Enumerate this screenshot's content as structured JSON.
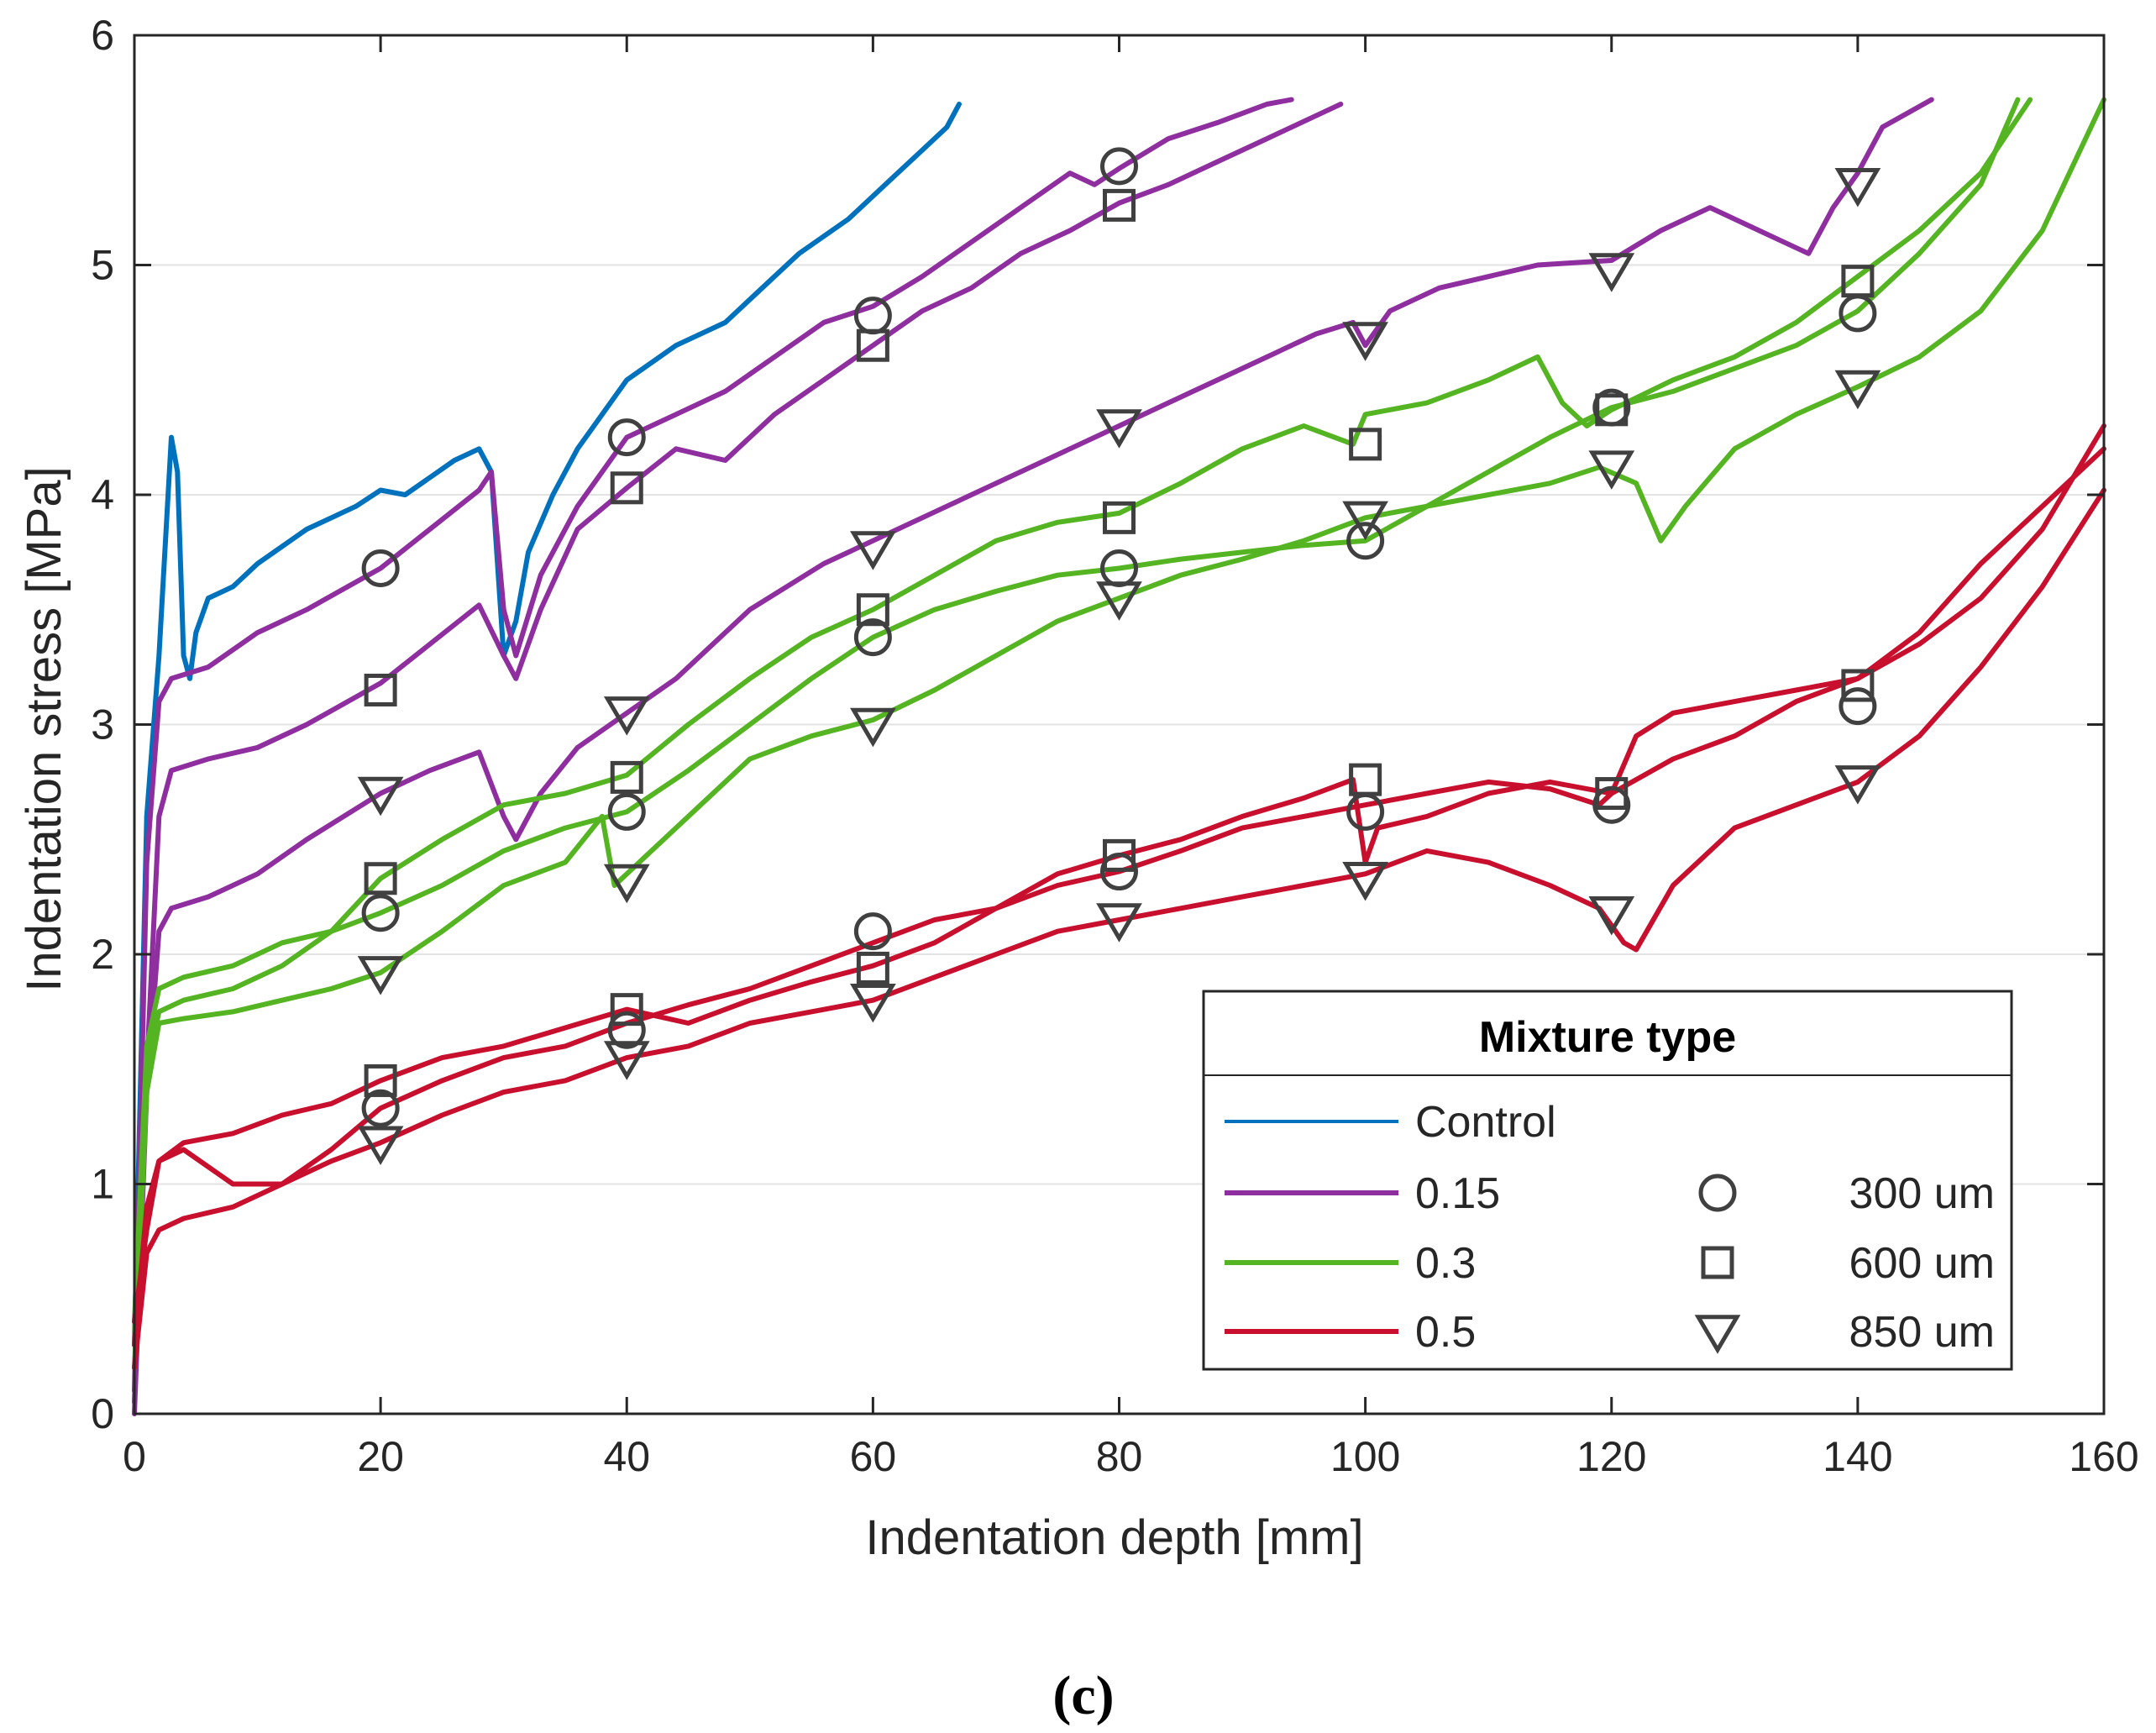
{
  "chart_data": {
    "type": "line",
    "xlabel": "Indentation depth [mm]",
    "ylabel": "Indentation stress [MPa]",
    "xlim": [
      0,
      160
    ],
    "ylim": [
      0,
      6
    ],
    "xticks": [
      0,
      20,
      40,
      60,
      80,
      100,
      120,
      140,
      160
    ],
    "yticks": [
      0,
      1,
      2,
      3,
      4,
      5,
      6
    ],
    "xtick_labels": [
      "0",
      "20",
      "40",
      "60",
      "80",
      "100",
      "120",
      "140",
      "160"
    ],
    "ytick_labels": [
      "0",
      "1",
      "2",
      "3",
      "4",
      "5",
      "6"
    ],
    "grid": true,
    "caption": "(c)",
    "legend": {
      "title": "Mixture type",
      "position": "lower-right",
      "line_entries": [
        {
          "label": "Control",
          "color": "#0072BD"
        },
        {
          "label": "0.15",
          "color": "#8E2E9F"
        },
        {
          "label": "0.3",
          "color": "#55B421"
        },
        {
          "label": "0.5",
          "color": "#C8102E"
        }
      ],
      "marker_entries": [
        {
          "label": "300 um",
          "marker": "circle"
        },
        {
          "label": "600 um",
          "marker": "square"
        },
        {
          "label": "850 um",
          "marker": "triangle-down"
        }
      ]
    },
    "series": [
      {
        "name": "Control",
        "color": "#0072BD",
        "marker": "none",
        "x": [
          0,
          1,
          2,
          3,
          3.5,
          4,
          4.5,
          5,
          6,
          8,
          10,
          14,
          18,
          20,
          22,
          26,
          28,
          29,
          30,
          31,
          32,
          34,
          36,
          40,
          44,
          48,
          50,
          54,
          58,
          62,
          64,
          66,
          67
        ],
        "y": [
          0.3,
          2.6,
          3.3,
          4.25,
          4.1,
          3.3,
          3.2,
          3.4,
          3.55,
          3.6,
          3.7,
          3.85,
          3.95,
          4.02,
          4.0,
          4.15,
          4.2,
          4.1,
          3.3,
          3.45,
          3.75,
          4.0,
          4.2,
          4.5,
          4.65,
          4.75,
          4.85,
          5.05,
          5.2,
          5.4,
          5.5,
          5.6,
          5.7
        ]
      },
      {
        "name": "0.15 / 300 um",
        "color": "#8E2E9F",
        "marker": "circle",
        "x": [
          0,
          1,
          2,
          3,
          6,
          10,
          14,
          20,
          24,
          28,
          29,
          30,
          31,
          33,
          36,
          40,
          44,
          48,
          52,
          56,
          60,
          64,
          68,
          72,
          76,
          78,
          80,
          84,
          88,
          92,
          94
        ],
        "y": [
          0.1,
          2.4,
          3.1,
          3.2,
          3.25,
          3.4,
          3.5,
          3.68,
          3.85,
          4.02,
          4.1,
          3.5,
          3.3,
          3.65,
          3.95,
          4.25,
          4.35,
          4.45,
          4.6,
          4.75,
          4.82,
          4.95,
          5.1,
          5.25,
          5.4,
          5.35,
          5.42,
          5.55,
          5.62,
          5.7,
          5.72
        ]
      },
      {
        "name": "0.15 / 600 um",
        "color": "#8E2E9F",
        "marker": "square",
        "x": [
          0,
          1,
          2,
          3,
          6,
          10,
          14,
          20,
          24,
          28,
          30,
          31,
          33,
          36,
          40,
          44,
          48,
          52,
          56,
          60,
          64,
          68,
          72,
          76,
          80,
          84,
          88,
          92,
          96,
          98
        ],
        "y": [
          0.05,
          1.5,
          2.6,
          2.8,
          2.85,
          2.9,
          3.0,
          3.18,
          3.35,
          3.52,
          3.3,
          3.2,
          3.5,
          3.85,
          4.03,
          4.2,
          4.15,
          4.35,
          4.5,
          4.65,
          4.8,
          4.9,
          5.05,
          5.15,
          5.27,
          5.35,
          5.45,
          5.55,
          5.65,
          5.7
        ]
      },
      {
        "name": "0.15 / 850 um",
        "color": "#8E2E9F",
        "marker": "triangle-down",
        "x": [
          0,
          1,
          2,
          3,
          6,
          10,
          14,
          20,
          24,
          28,
          30,
          31,
          33,
          36,
          40,
          44,
          50,
          56,
          60,
          66,
          70,
          76,
          80,
          86,
          90,
          96,
          99,
          100,
          102,
          106,
          110,
          114,
          120,
          124,
          128,
          132,
          134,
          136,
          138,
          140,
          142,
          146
        ],
        "y": [
          0.0,
          1.4,
          2.1,
          2.2,
          2.25,
          2.35,
          2.5,
          2.7,
          2.8,
          2.88,
          2.6,
          2.5,
          2.7,
          2.9,
          3.05,
          3.2,
          3.5,
          3.7,
          3.8,
          3.95,
          4.05,
          4.2,
          4.3,
          4.45,
          4.55,
          4.7,
          4.75,
          4.65,
          4.8,
          4.9,
          4.95,
          5.0,
          5.02,
          5.15,
          5.25,
          5.15,
          5.1,
          5.05,
          5.25,
          5.4,
          5.6,
          5.72
        ]
      },
      {
        "name": "0.3 / 300 um",
        "color": "#55B421",
        "marker": "circle",
        "x": [
          0,
          1,
          2,
          4,
          8,
          12,
          16,
          20,
          25,
          30,
          35,
          40,
          45,
          50,
          55,
          60,
          65,
          70,
          75,
          80,
          85,
          90,
          95,
          100,
          105,
          110,
          115,
          120,
          125,
          130,
          135,
          140,
          145,
          150,
          153
        ],
        "y": [
          0.4,
          1.6,
          1.85,
          1.9,
          1.95,
          2.05,
          2.1,
          2.18,
          2.3,
          2.45,
          2.55,
          2.62,
          2.8,
          3.0,
          3.2,
          3.38,
          3.5,
          3.58,
          3.65,
          3.68,
          3.72,
          3.75,
          3.78,
          3.8,
          3.95,
          4.1,
          4.25,
          4.38,
          4.45,
          4.55,
          4.65,
          4.8,
          5.05,
          5.35,
          5.72
        ]
      },
      {
        "name": "0.3 / 600 um",
        "color": "#55B421",
        "marker": "square",
        "x": [
          0,
          1,
          2,
          4,
          8,
          12,
          16,
          20,
          25,
          30,
          35,
          40,
          45,
          50,
          55,
          60,
          65,
          70,
          75,
          80,
          85,
          90,
          95,
          99,
          100,
          105,
          110,
          114,
          116,
          118,
          120,
          125,
          130,
          135,
          140,
          145,
          150,
          154
        ],
        "y": [
          0.3,
          1.5,
          1.75,
          1.8,
          1.85,
          1.95,
          2.1,
          2.33,
          2.5,
          2.65,
          2.7,
          2.78,
          3.0,
          3.2,
          3.38,
          3.5,
          3.65,
          3.8,
          3.88,
          3.92,
          4.05,
          4.2,
          4.3,
          4.22,
          4.35,
          4.4,
          4.5,
          4.6,
          4.4,
          4.3,
          4.37,
          4.5,
          4.6,
          4.75,
          4.95,
          5.15,
          5.4,
          5.72
        ]
      },
      {
        "name": "0.3 / 850 um",
        "color": "#55B421",
        "marker": "triangle-down",
        "x": [
          0,
          1,
          2,
          4,
          8,
          12,
          16,
          20,
          25,
          30,
          35,
          38,
          39,
          40,
          45,
          50,
          55,
          60,
          65,
          70,
          75,
          80,
          85,
          90,
          95,
          100,
          105,
          110,
          115,
          119,
          122,
          124,
          126,
          130,
          135,
          140,
          145,
          150,
          155,
          160
        ],
        "y": [
          0.2,
          1.4,
          1.7,
          1.72,
          1.75,
          1.8,
          1.85,
          1.92,
          2.1,
          2.3,
          2.4,
          2.6,
          2.3,
          2.35,
          2.6,
          2.85,
          2.95,
          3.02,
          3.15,
          3.3,
          3.45,
          3.55,
          3.65,
          3.72,
          3.8,
          3.9,
          3.95,
          4.0,
          4.05,
          4.12,
          4.05,
          3.8,
          3.95,
          4.2,
          4.35,
          4.47,
          4.6,
          4.8,
          5.15,
          5.72
        ]
      },
      {
        "name": "0.5 / 300 um",
        "color": "#C8102E",
        "marker": "circle",
        "x": [
          0,
          1,
          2,
          4,
          8,
          12,
          16,
          20,
          25,
          30,
          35,
          40,
          45,
          50,
          55,
          60,
          65,
          70,
          75,
          80,
          85,
          90,
          95,
          100,
          105,
          110,
          115,
          119,
          120,
          122,
          125,
          130,
          135,
          140,
          145,
          150,
          155,
          160
        ],
        "y": [
          0.4,
          0.8,
          1.1,
          1.15,
          1.0,
          1.0,
          1.15,
          1.33,
          1.45,
          1.55,
          1.6,
          1.7,
          1.78,
          1.85,
          1.95,
          2.05,
          2.15,
          2.2,
          2.3,
          2.36,
          2.45,
          2.55,
          2.6,
          2.65,
          2.7,
          2.75,
          2.72,
          2.65,
          2.7,
          2.95,
          3.05,
          3.1,
          3.15,
          3.2,
          3.35,
          3.55,
          3.85,
          4.3
        ]
      },
      {
        "name": "0.5 / 600 um",
        "color": "#C8102E",
        "marker": "square",
        "x": [
          0,
          1,
          2,
          4,
          8,
          12,
          16,
          20,
          25,
          30,
          35,
          40,
          45,
          50,
          55,
          60,
          65,
          70,
          75,
          80,
          85,
          90,
          95,
          99,
          100,
          101,
          105,
          110,
          115,
          120,
          125,
          130,
          135,
          140,
          145,
          150,
          155,
          160
        ],
        "y": [
          0.3,
          0.9,
          1.1,
          1.18,
          1.22,
          1.3,
          1.35,
          1.45,
          1.55,
          1.6,
          1.68,
          1.76,
          1.7,
          1.8,
          1.88,
          1.95,
          2.05,
          2.2,
          2.35,
          2.43,
          2.5,
          2.6,
          2.68,
          2.76,
          2.4,
          2.55,
          2.6,
          2.7,
          2.75,
          2.7,
          2.85,
          2.95,
          3.1,
          3.2,
          3.4,
          3.7,
          3.95,
          4.2
        ]
      },
      {
        "name": "0.5 / 850 um",
        "color": "#C8102E",
        "marker": "triangle-down",
        "x": [
          0,
          1,
          2,
          4,
          8,
          12,
          16,
          20,
          25,
          30,
          35,
          40,
          45,
          50,
          55,
          60,
          65,
          70,
          75,
          80,
          85,
          90,
          95,
          100,
          105,
          110,
          115,
          119,
          121,
          122,
          125,
          130,
          135,
          140,
          145,
          150,
          155,
          160
        ],
        "y": [
          0.2,
          0.7,
          0.8,
          0.85,
          0.9,
          1.0,
          1.1,
          1.18,
          1.3,
          1.4,
          1.45,
          1.55,
          1.6,
          1.7,
          1.75,
          1.8,
          1.9,
          2.0,
          2.1,
          2.15,
          2.2,
          2.25,
          2.3,
          2.35,
          2.45,
          2.4,
          2.3,
          2.2,
          2.05,
          2.02,
          2.3,
          2.55,
          2.65,
          2.75,
          2.95,
          3.25,
          3.6,
          4.02
        ]
      }
    ],
    "marker_points": [
      {
        "series": "0.15 / 300 um",
        "marker": "circle",
        "x": [
          20,
          40,
          60,
          80
        ],
        "y": [
          3.68,
          4.25,
          4.78,
          5.43
        ]
      },
      {
        "series": "0.15 / 600 um",
        "marker": "square",
        "x": [
          20,
          40,
          60,
          80
        ],
        "y": [
          3.15,
          4.03,
          4.65,
          5.26
        ]
      },
      {
        "series": "0.15 / 850 um",
        "marker": "triangle-down",
        "x": [
          20,
          40,
          60,
          80,
          100,
          120,
          140
        ],
        "y": [
          2.7,
          3.05,
          3.77,
          4.3,
          4.68,
          4.98,
          5.35
        ]
      },
      {
        "series": "0.3 / 300 um",
        "marker": "circle",
        "x": [
          20,
          40,
          60,
          80,
          100,
          120,
          140
        ],
        "y": [
          2.18,
          2.62,
          3.38,
          3.68,
          3.8,
          4.38,
          4.79
        ]
      },
      {
        "series": "0.3 / 600 um",
        "marker": "square",
        "x": [
          20,
          40,
          60,
          80,
          100,
          120,
          140
        ],
        "y": [
          2.33,
          2.77,
          3.5,
          3.9,
          4.22,
          4.37,
          4.93
        ]
      },
      {
        "series": "0.3 / 850 um",
        "marker": "triangle-down",
        "x": [
          20,
          40,
          60,
          80,
          100,
          120,
          140
        ],
        "y": [
          1.92,
          2.32,
          3.0,
          3.55,
          3.9,
          4.12,
          4.47
        ]
      },
      {
        "series": "0.5 / 300 um",
        "marker": "circle",
        "x": [
          20,
          40,
          60,
          80,
          100,
          120,
          140
        ],
        "y": [
          1.33,
          1.67,
          2.1,
          2.36,
          2.62,
          2.65,
          3.08
        ]
      },
      {
        "series": "0.5 / 600 um",
        "marker": "square",
        "x": [
          20,
          40,
          60,
          80,
          100,
          120,
          140
        ],
        "y": [
          1.45,
          1.76,
          1.94,
          2.43,
          2.76,
          2.7,
          3.17
        ]
      },
      {
        "series": "0.5 / 850 um",
        "marker": "triangle-down",
        "x": [
          20,
          40,
          60,
          80,
          100,
          120,
          140
        ],
        "y": [
          1.18,
          1.55,
          1.8,
          2.15,
          2.33,
          2.18,
          2.75
        ]
      }
    ]
  }
}
